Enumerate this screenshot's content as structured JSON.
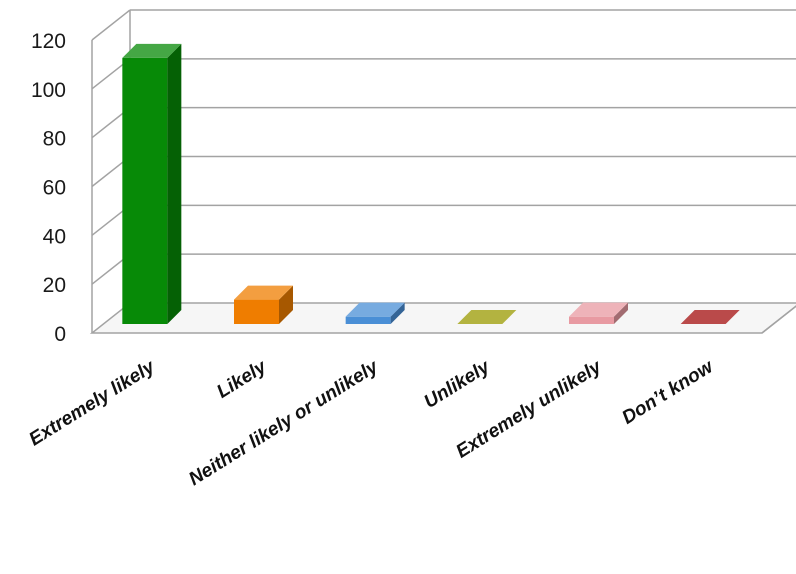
{
  "chart_data": {
    "type": "bar",
    "categories": [
      "Extremely likely",
      "Likely",
      "Neither likely or unlikely",
      "Unlikely",
      "Extremely unlikely",
      "Don’t know"
    ],
    "values": [
      109,
      10,
      3,
      0,
      3,
      0
    ],
    "ylim": [
      0,
      120
    ],
    "yticks": [
      "0",
      "20",
      "40",
      "60",
      "80",
      "100",
      "120"
    ],
    "grid": true,
    "style": "3d-bar",
    "colors": [
      "#078a07",
      "#ef7d00",
      "#4a8fd6",
      "#9a9a00",
      "#e89aa2",
      "#a30e0e"
    ]
  }
}
